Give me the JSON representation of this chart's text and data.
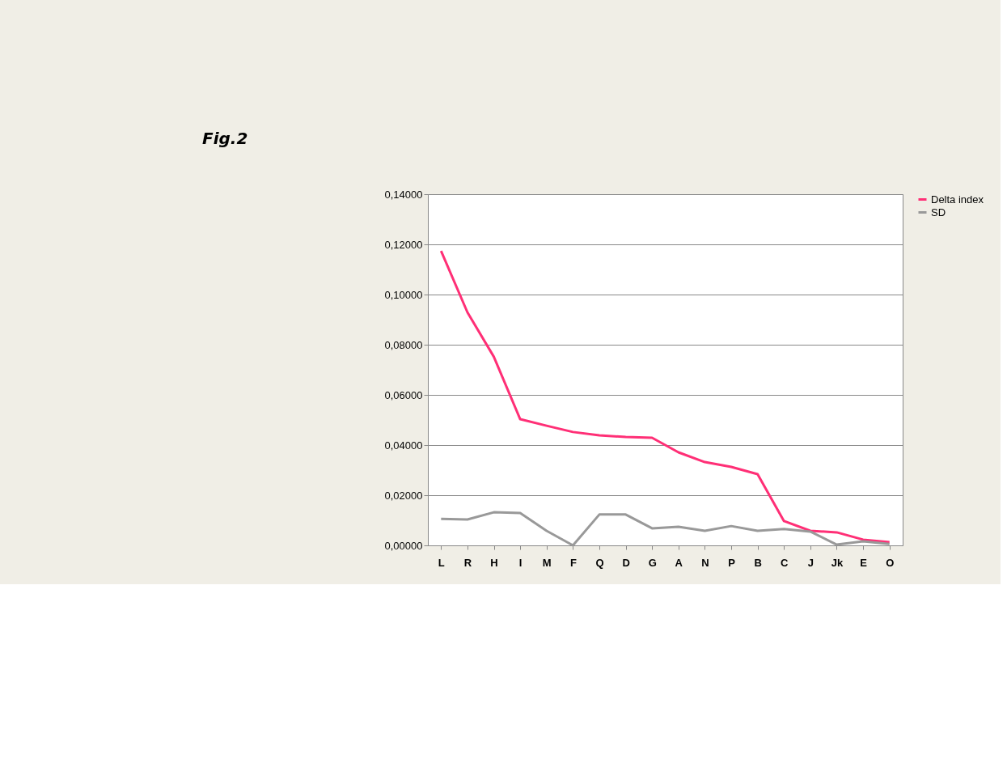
{
  "chart_data": {
    "type": "line",
    "title": "Fig.2",
    "categories": [
      "L",
      "R",
      "H",
      "I",
      "M",
      "F",
      "Q",
      "D",
      "G",
      "A",
      "N",
      "P",
      "B",
      "C",
      "J",
      "Jk",
      "E",
      "O"
    ],
    "series": [
      {
        "name": "Delta index",
        "color": "#ff2f76",
        "values": [
          0.1174,
          0.0929,
          0.0752,
          0.0503,
          0.0477,
          0.0452,
          0.0439,
          0.0432,
          0.0429,
          0.0371,
          0.0332,
          0.0313,
          0.0284,
          0.0097,
          0.0058,
          0.0052,
          0.0023,
          0.0013
        ]
      },
      {
        "name": "SD",
        "color": "#999999",
        "values": [
          0.0106,
          0.0103,
          0.0132,
          0.0129,
          0.0058,
          0.0,
          0.0123,
          0.0123,
          0.0068,
          0.0074,
          0.0058,
          0.0077,
          0.0058,
          0.0065,
          0.0055,
          0.0003,
          0.0016,
          0.0006
        ]
      }
    ],
    "ylim": [
      0,
      0.14
    ],
    "yticks": [
      {
        "value": 0,
        "label": "0,00000"
      },
      {
        "value": 0.02,
        "label": "0,02000"
      },
      {
        "value": 0.04,
        "label": "0,04000"
      },
      {
        "value": 0.06,
        "label": "0,06000"
      },
      {
        "value": 0.08,
        "label": "0,08000"
      },
      {
        "value": 0.1,
        "label": "0,10000"
      },
      {
        "value": 0.12,
        "label": "0,12000"
      },
      {
        "value": 0.14,
        "label": "0,14000"
      }
    ],
    "grid": "y",
    "legend": "right",
    "marker": "none",
    "line_style": "solid"
  }
}
